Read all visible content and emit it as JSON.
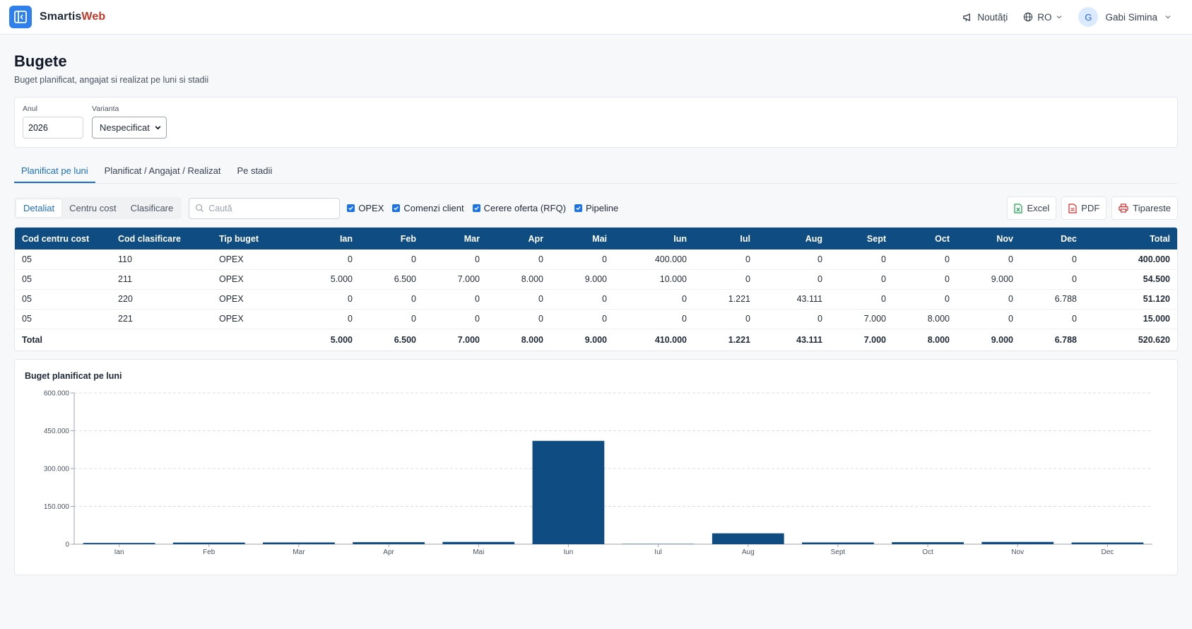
{
  "app": {
    "brand_main": "Smartis",
    "brand_accent": "Web",
    "news_label": "Noutăți",
    "lang_label": "RO",
    "user_initial": "G",
    "user_name": "Gabi Simina"
  },
  "page": {
    "title": "Bugete",
    "subtitle": "Buget planificat, angajat si realizat pe luni si stadii"
  },
  "filters": {
    "year_label": "Anul",
    "year_value": "2026",
    "variant_label": "Varianta",
    "variant_value": "Nespecificat"
  },
  "tabs": [
    {
      "label": "Planificat pe luni",
      "active": true
    },
    {
      "label": "Planificat / Angajat / Realizat",
      "active": false
    },
    {
      "label": "Pe stadii",
      "active": false
    }
  ],
  "toolbar": {
    "views": [
      {
        "label": "Detaliat",
        "active": true
      },
      {
        "label": "Centru cost",
        "active": false
      },
      {
        "label": "Clasificare",
        "active": false
      }
    ],
    "search_placeholder": "Caută",
    "checks": [
      {
        "label": "OPEX",
        "checked": true
      },
      {
        "label": "Comenzi client",
        "checked": true
      },
      {
        "label": "Cerere oferta (RFQ)",
        "checked": true
      },
      {
        "label": "Pipeline",
        "checked": true
      }
    ],
    "excel_label": "Excel",
    "pdf_label": "PDF",
    "print_label": "Tipareste"
  },
  "table": {
    "headers": [
      "Cod centru cost",
      "Cod clasificare",
      "Tip buget",
      "Ian",
      "Feb",
      "Mar",
      "Apr",
      "Mai",
      "Iun",
      "Iul",
      "Aug",
      "Sept",
      "Oct",
      "Nov",
      "Dec",
      "Total"
    ],
    "rows": [
      [
        "05",
        "110",
        "OPEX",
        "0",
        "0",
        "0",
        "0",
        "0",
        "400.000",
        "0",
        "0",
        "0",
        "0",
        "0",
        "0",
        "400.000"
      ],
      [
        "05",
        "211",
        "OPEX",
        "5.000",
        "6.500",
        "7.000",
        "8.000",
        "9.000",
        "10.000",
        "0",
        "0",
        "0",
        "0",
        "9.000",
        "0",
        "54.500"
      ],
      [
        "05",
        "220",
        "OPEX",
        "0",
        "0",
        "0",
        "0",
        "0",
        "0",
        "1.221",
        "43.111",
        "0",
        "0",
        "0",
        "6.788",
        "51.120"
      ],
      [
        "05",
        "221",
        "OPEX",
        "0",
        "0",
        "0",
        "0",
        "0",
        "0",
        "0",
        "0",
        "7.000",
        "8.000",
        "0",
        "0",
        "15.000"
      ]
    ],
    "total_label": "Total",
    "totals": [
      "5.000",
      "6.500",
      "7.000",
      "8.000",
      "9.000",
      "410.000",
      "1.221",
      "43.111",
      "7.000",
      "8.000",
      "9.000",
      "6.788",
      "520.620"
    ]
  },
  "colors": {
    "accent": "#1d6fc4",
    "header_bg": "#0f4c81",
    "bar": "#0f4c81",
    "brand_accent": "#c0392b"
  },
  "chart_data": {
    "type": "bar",
    "title": "Buget planificat pe luni",
    "categories": [
      "Ian",
      "Feb",
      "Mar",
      "Apr",
      "Mai",
      "Iun",
      "Iul",
      "Aug",
      "Sept",
      "Oct",
      "Nov",
      "Dec"
    ],
    "values": [
      5000,
      6500,
      7000,
      8000,
      9000,
      410000,
      1221,
      43111,
      7000,
      8000,
      9000,
      6788
    ],
    "ylim": [
      0,
      600000
    ],
    "yticks": [
      0,
      150000,
      300000,
      450000,
      600000
    ],
    "ytick_labels": [
      "0",
      "150.000",
      "300.000",
      "450.000",
      "600.000"
    ],
    "grid": true,
    "legend": "none"
  }
}
